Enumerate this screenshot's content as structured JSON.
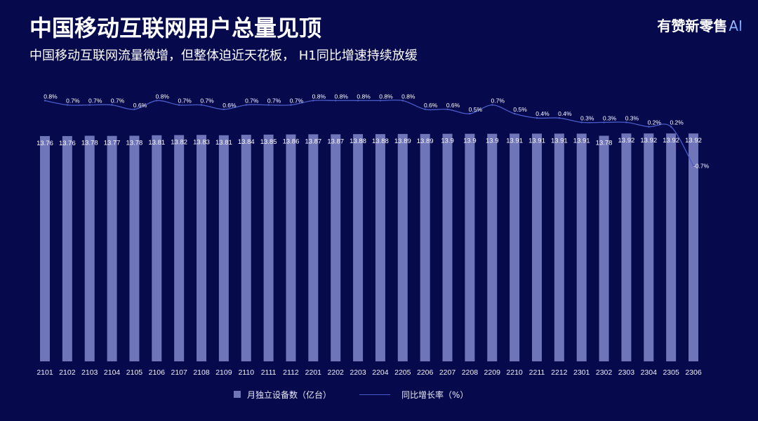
{
  "brand": {
    "name": "有赞新零售",
    "suffix": "AI"
  },
  "colors": {
    "background": "#060a4d",
    "bar": "#7074b8",
    "line": "#4a5cc8",
    "text": "#ffffff"
  },
  "chart_data": {
    "type": "bar",
    "title": "中国移动互联网用户总量见顶",
    "subtitle": "中国移动互联网流量微增，但整体迫近天花板， H1同比增速持续放缓",
    "categories": [
      "2101",
      "2102",
      "2103",
      "2104",
      "2105",
      "2106",
      "2107",
      "2108",
      "2109",
      "2110",
      "2111",
      "2112",
      "2201",
      "2202",
      "2203",
      "2204",
      "2205",
      "2206",
      "2207",
      "2208",
      "2209",
      "2210",
      "2211",
      "2212",
      "2301",
      "2302",
      "2303",
      "2304",
      "2305",
      "2306"
    ],
    "series": [
      {
        "name": "月独立设备数（亿台）",
        "type": "bar",
        "axis": "left",
        "values": [
          13.76,
          13.76,
          13.78,
          13.77,
          13.78,
          13.81,
          13.82,
          13.83,
          13.81,
          13.84,
          13.85,
          13.86,
          13.87,
          13.87,
          13.88,
          13.88,
          13.89,
          13.89,
          13.9,
          13.9,
          13.9,
          13.91,
          13.91,
          13.91,
          13.91,
          13.78,
          13.92,
          13.92,
          13.92,
          13.92
        ]
      },
      {
        "name": "同比增长率（%）",
        "type": "line",
        "axis": "right",
        "smooth": true,
        "label_suffix": "%",
        "values": [
          0.8,
          0.7,
          0.7,
          0.7,
          0.6,
          0.8,
          0.7,
          0.7,
          0.6,
          0.7,
          0.7,
          0.7,
          0.8,
          0.8,
          0.8,
          0.8,
          0.8,
          0.6,
          0.6,
          0.5,
          0.7,
          0.5,
          0.4,
          0.4,
          0.3,
          0.3,
          0.3,
          0.2,
          0.2,
          -0.7
        ]
      }
    ],
    "ylim": [
      0,
      15
    ],
    "y2lim": [
      -1,
      1
    ],
    "grid": false,
    "legend": "bottom-center"
  }
}
